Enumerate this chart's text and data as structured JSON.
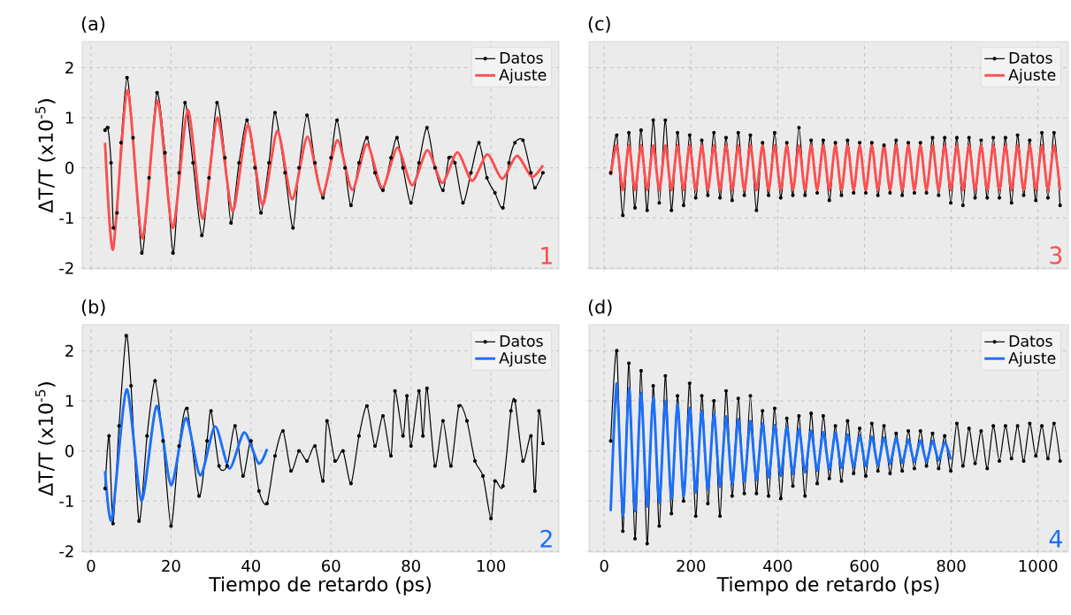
{
  "chart_data": [
    {
      "type": "line",
      "title": "(a)",
      "ylabel": "ΔT/T (x10$^{-5}$)",
      "xlim": [
        -2.2,
        117
      ],
      "ylim": [
        -2.02,
        2.52
      ],
      "xticks": [
        0,
        20,
        40,
        60,
        80,
        100
      ],
      "yticks": [
        -2,
        -1,
        0,
        1,
        2
      ],
      "grid": true,
      "legend": "top right",
      "tick_labels": "y",
      "annotations": [
        "1"
      ],
      "series": [
        {
          "name": "Datos",
          "color": "#000000",
          "marker": "circle",
          "x": [
            3.5,
            4.2,
            5.0,
            5.6,
            6.5,
            7.5,
            9.0,
            10.5,
            12.7,
            14.5,
            16.5,
            18.5,
            20.5,
            22,
            23.5,
            25.5,
            27.7,
            29.5,
            31.5,
            33.5,
            35,
            37,
            39,
            41,
            42.5,
            44.5,
            46,
            48.5,
            50.5,
            52,
            54,
            56,
            58,
            60,
            61.5,
            63.5,
            65,
            67,
            69,
            71,
            73,
            75,
            76.5,
            78,
            80,
            82,
            84,
            86,
            88,
            89.5,
            91,
            93,
            95,
            97,
            99,
            101,
            103,
            104.5,
            106,
            108,
            110,
            111,
            113
          ],
          "values": [
            0.75,
            0.8,
            0.1,
            -1.2,
            -0.9,
            0.5,
            1.8,
            0.6,
            -1.7,
            -0.2,
            1.5,
            0.3,
            -1.7,
            -0.1,
            1.3,
            0.1,
            -1.35,
            -0.2,
            1.3,
            0.2,
            -1.1,
            0.1,
            0.95,
            0.0,
            -0.9,
            0.1,
            1.1,
            -0.1,
            -1.2,
            0.0,
            1.05,
            0.1,
            -0.6,
            0.2,
            0.95,
            0.0,
            -0.75,
            0.1,
            0.6,
            -0.1,
            -0.45,
            0.2,
            0.6,
            0.0,
            -0.7,
            0.1,
            0.8,
            0.0,
            -0.45,
            0.2,
            0.1,
            -0.7,
            -0.1,
            0.5,
            -0.2,
            -0.5,
            -0.8,
            0.1,
            0.5,
            0.55,
            -0.1,
            -0.4,
            -0.1
          ]
        },
        {
          "name": "Ajuste",
          "color": "#fc4f4f",
          "x": [
            3.5,
            5.5,
            9.1,
            12.8,
            16.6,
            20.4,
            24.2,
            27.9,
            31.6,
            35.4,
            39.2,
            42.9,
            46.6,
            50.3,
            54.1,
            57.8,
            61.6,
            65.3,
            69,
            72.8,
            76.6,
            80.3,
            84.1,
            87.8,
            91.6,
            95.3,
            99.1,
            102.8,
            106.5,
            110.2,
            113
          ],
          "values": [
            0.5,
            -1.63,
            1.55,
            -1.41,
            1.34,
            -1.2,
            1.15,
            -1.02,
            1.0,
            -0.87,
            0.85,
            -0.74,
            0.74,
            -0.63,
            0.62,
            -0.53,
            0.55,
            -0.44,
            0.47,
            -0.4,
            0.4,
            -0.35,
            0.35,
            -0.3,
            0.31,
            -0.26,
            0.27,
            -0.22,
            0.24,
            -0.18,
            0.05
          ]
        }
      ]
    },
    {
      "type": "line",
      "title": "(c)",
      "xlim": [
        -35,
        1070
      ],
      "ylim": [
        -2.02,
        2.52
      ],
      "xticks": [
        0,
        200,
        400,
        600,
        800,
        1000
      ],
      "yticks": [
        -2,
        -1,
        0,
        1,
        2
      ],
      "grid": true,
      "legend": "top right",
      "tick_labels": false,
      "annotations": [
        "3"
      ],
      "series": [
        {
          "name": "Datos",
          "color": "#000000",
          "marker": "circle",
          "x": [
            15,
            29,
            43,
            57,
            71,
            85,
            99,
            113,
            127,
            141,
            155,
            169,
            183,
            197,
            211,
            225,
            239,
            253,
            267,
            281,
            295,
            309,
            323,
            337,
            351,
            365,
            379,
            393,
            407,
            421,
            435,
            449,
            463,
            477,
            491,
            505,
            519,
            533,
            547,
            561,
            575,
            589,
            603,
            617,
            631,
            645,
            659,
            673,
            687,
            701,
            715,
            729,
            743,
            757,
            771,
            785,
            799,
            813,
            827,
            841,
            855,
            869,
            883,
            897,
            911,
            925,
            939,
            953,
            967,
            981,
            995,
            1009,
            1023,
            1037,
            1051
          ],
          "values": [
            -0.1,
            0.65,
            -0.95,
            0.7,
            -0.8,
            0.75,
            -0.85,
            0.95,
            -0.7,
            0.95,
            -0.85,
            0.7,
            -0.75,
            0.65,
            -0.6,
            0.55,
            -0.55,
            0.7,
            -0.6,
            0.6,
            -0.65,
            0.7,
            -0.55,
            0.65,
            -0.85,
            0.5,
            -0.55,
            0.7,
            -0.6,
            0.5,
            -0.55,
            0.8,
            -0.55,
            0.55,
            -0.5,
            0.55,
            -0.65,
            0.5,
            -0.55,
            0.55,
            -0.5,
            0.5,
            -0.5,
            0.5,
            -0.55,
            0.45,
            -0.5,
            0.55,
            -0.55,
            0.5,
            -0.5,
            0.5,
            -0.5,
            0.6,
            -0.55,
            0.6,
            -0.7,
            0.6,
            -0.75,
            0.6,
            -0.6,
            0.55,
            -0.6,
            0.6,
            -0.6,
            0.6,
            -0.7,
            0.65,
            -0.55,
            0.55,
            -0.65,
            0.7,
            -0.6,
            0.7,
            -0.75
          ]
        },
        {
          "name": "Ajuste",
          "color": "#fc4f4f",
          "x": [
            15,
            29,
            43,
            57,
            71,
            85,
            99,
            113,
            127,
            141,
            155,
            169,
            183,
            197,
            211,
            225,
            239,
            253,
            267,
            281,
            295,
            309,
            323,
            337,
            351,
            365,
            379,
            393,
            407,
            421,
            435,
            449,
            463,
            477,
            491,
            505,
            519,
            533,
            547,
            561,
            575,
            589,
            603,
            617,
            631,
            645,
            659,
            673,
            687,
            701,
            715,
            729,
            743,
            757,
            771,
            785,
            799,
            813,
            827,
            841,
            855,
            869,
            883,
            897,
            911,
            925,
            939,
            953,
            967,
            981,
            995,
            1009,
            1023,
            1037,
            1051
          ],
          "values": [
            -0.15,
            0.45,
            -0.45,
            0.45,
            -0.45,
            0.45,
            -0.45,
            0.45,
            -0.45,
            0.45,
            -0.45,
            0.45,
            -0.45,
            0.45,
            -0.45,
            0.45,
            -0.45,
            0.45,
            -0.45,
            0.45,
            -0.45,
            0.45,
            -0.45,
            0.45,
            -0.45,
            0.45,
            -0.45,
            0.45,
            -0.45,
            0.45,
            -0.45,
            0.45,
            -0.45,
            0.45,
            -0.45,
            0.45,
            -0.45,
            0.45,
            -0.45,
            0.45,
            -0.45,
            0.45,
            -0.45,
            0.45,
            -0.45,
            0.45,
            -0.45,
            0.45,
            -0.45,
            0.45,
            -0.45,
            0.45,
            -0.45,
            0.45,
            -0.45,
            0.45,
            -0.45,
            0.45,
            -0.45,
            0.45,
            -0.45,
            0.45,
            -0.45,
            0.45,
            -0.45,
            0.45,
            -0.45,
            0.45,
            -0.45,
            0.45,
            -0.45,
            0.45,
            -0.45,
            0.45,
            -0.45
          ]
        }
      ]
    },
    {
      "type": "line",
      "title": "(b)",
      "xlabel": "Tiempo de retardo (ps)",
      "ylabel": "ΔT/T (x10$^{-5}$)",
      "xlim": [
        -2.2,
        117
      ],
      "ylim": [
        -2.02,
        2.52
      ],
      "xticks": [
        0,
        20,
        40,
        60,
        80,
        100
      ],
      "yticks": [
        -2,
        -1,
        0,
        1,
        2
      ],
      "grid": true,
      "legend": "top right",
      "annotations": [
        "2"
      ],
      "series": [
        {
          "name": "Datos",
          "color": "#000000",
          "marker": "circle",
          "x": [
            3.5,
            4.5,
            5.5,
            7,
            8.8,
            10,
            12,
            14,
            16,
            18,
            20,
            22,
            24,
            27,
            29,
            30,
            32,
            34,
            36,
            38,
            40,
            42,
            44,
            46,
            48,
            50,
            52,
            54,
            56,
            58,
            59,
            61,
            63,
            65,
            67,
            69,
            71,
            73,
            75,
            76,
            78,
            79,
            80,
            82,
            83,
            84,
            86,
            88,
            90,
            92,
            94,
            96,
            98,
            100,
            101,
            103,
            105,
            106,
            108,
            110,
            111,
            112,
            113
          ],
          "values": [
            -0.75,
            0.3,
            -1.45,
            0.5,
            2.3,
            1.3,
            -1.4,
            0.3,
            1.4,
            0.2,
            -1.5,
            0.1,
            0.85,
            -0.9,
            0.2,
            0.8,
            -0.3,
            -0.3,
            0.5,
            -0.5,
            0.2,
            -0.8,
            -1.05,
            -0.1,
            0.4,
            -0.4,
            0.0,
            -0.2,
            0.1,
            -0.6,
            0.6,
            -0.2,
            0.0,
            -0.65,
            0.3,
            0.9,
            0.1,
            0.7,
            -0.1,
            1.2,
            0.3,
            1.1,
            0.1,
            1.2,
            0.3,
            1.25,
            -0.3,
            0.6,
            -0.3,
            0.9,
            0.6,
            -0.2,
            -0.5,
            -1.35,
            -0.6,
            -0.7,
            0.8,
            1.0,
            -0.2,
            0.3,
            -0.8,
            0.8,
            0.15
          ]
        },
        {
          "name": "Ajuste",
          "color": "#1c6ff8",
          "x": [
            3.5,
            5.2,
            8.9,
            12.6,
            16.4,
            20,
            23.7,
            27.3,
            31,
            34.6,
            38.3,
            41.9,
            44
          ],
          "values": [
            -0.4,
            -1.37,
            1.23,
            -0.99,
            0.9,
            -0.68,
            0.66,
            -0.49,
            0.49,
            -0.35,
            0.37,
            -0.25,
            0.04
          ]
        }
      ]
    },
    {
      "type": "line",
      "title": "(d)",
      "xlabel": "Tiempo de retardo (ps)",
      "xlim": [
        -35,
        1070
      ],
      "ylim": [
        -2.02,
        2.52
      ],
      "xticks": [
        0,
        200,
        400,
        600,
        800,
        1000
      ],
      "yticks": [
        -2,
        -1,
        0,
        1,
        2
      ],
      "grid": true,
      "legend": "top right",
      "tick_labels": "x",
      "annotations": [
        "4"
      ],
      "series": [
        {
          "name": "Datos",
          "color": "#000000",
          "marker": "circle",
          "x": [
            15,
            29,
            43,
            57,
            71,
            85,
            99,
            113,
            127,
            141,
            155,
            169,
            183,
            197,
            211,
            225,
            239,
            253,
            267,
            281,
            295,
            309,
            323,
            337,
            351,
            365,
            379,
            393,
            407,
            421,
            435,
            449,
            463,
            477,
            491,
            505,
            519,
            533,
            547,
            561,
            575,
            589,
            603,
            617,
            631,
            645,
            659,
            673,
            687,
            701,
            715,
            729,
            743,
            757,
            771,
            785,
            799,
            813,
            827,
            841,
            855,
            869,
            883,
            897,
            911,
            925,
            939,
            953,
            967,
            981,
            995,
            1009,
            1023,
            1037,
            1051
          ],
          "values": [
            0.2,
            2.0,
            -1.6,
            1.75,
            -1.75,
            1.6,
            -1.85,
            1.3,
            -1.5,
            1.5,
            -1.25,
            1.1,
            -1.0,
            1.35,
            -1.3,
            1.1,
            -1.05,
            1.0,
            -1.3,
            1.2,
            -0.9,
            1.05,
            -0.85,
            1.1,
            -0.85,
            0.8,
            -0.9,
            0.85,
            -0.95,
            0.65,
            -0.7,
            0.7,
            -0.9,
            0.75,
            -0.65,
            0.7,
            -0.55,
            0.5,
            -0.6,
            0.6,
            -0.45,
            0.45,
            -0.5,
            0.55,
            -0.4,
            0.5,
            -0.45,
            0.35,
            -0.4,
            0.4,
            -0.35,
            0.4,
            -0.3,
            0.35,
            -0.35,
            0.3,
            -0.4,
            0.55,
            -0.3,
            0.45,
            -0.25,
            0.4,
            -0.35,
            0.5,
            -0.2,
            0.5,
            -0.15,
            0.5,
            -0.2,
            0.55,
            -0.1,
            0.5,
            -0.15,
            0.55,
            -0.2
          ]
        },
        {
          "name": "Ajuste",
          "color": "#1c6ff8",
          "x": [
            15,
            29,
            43,
            57,
            71,
            85,
            99,
            113,
            127,
            141,
            155,
            169,
            183,
            197,
            211,
            225,
            239,
            253,
            267,
            281,
            295,
            309,
            323,
            337,
            351,
            365,
            379,
            393,
            407,
            421,
            435,
            449,
            463,
            477,
            491,
            505,
            519,
            533,
            547,
            561,
            575,
            589,
            603,
            617,
            631,
            645,
            659,
            673,
            687,
            701,
            715,
            729,
            743,
            757,
            771,
            785,
            799
          ],
          "values": [
            -1.2,
            1.35,
            -1.3,
            1.25,
            -1.2,
            1.16,
            -1.11,
            1.07,
            -1.04,
            1.0,
            -0.96,
            0.93,
            -0.9,
            0.86,
            -0.83,
            0.8,
            -0.77,
            0.74,
            -0.72,
            0.69,
            -0.67,
            0.64,
            -0.62,
            0.6,
            -0.58,
            0.55,
            -0.53,
            0.52,
            -0.5,
            0.48,
            -0.46,
            0.44,
            -0.43,
            0.41,
            -0.4,
            0.38,
            -0.37,
            0.36,
            -0.34,
            0.33,
            -0.32,
            0.31,
            -0.3,
            0.29,
            -0.28,
            0.27,
            -0.26,
            0.25,
            -0.24,
            0.23,
            -0.22,
            0.21,
            -0.21,
            0.2,
            -0.19,
            0.18,
            -0.17
          ]
        }
      ]
    }
  ]
}
